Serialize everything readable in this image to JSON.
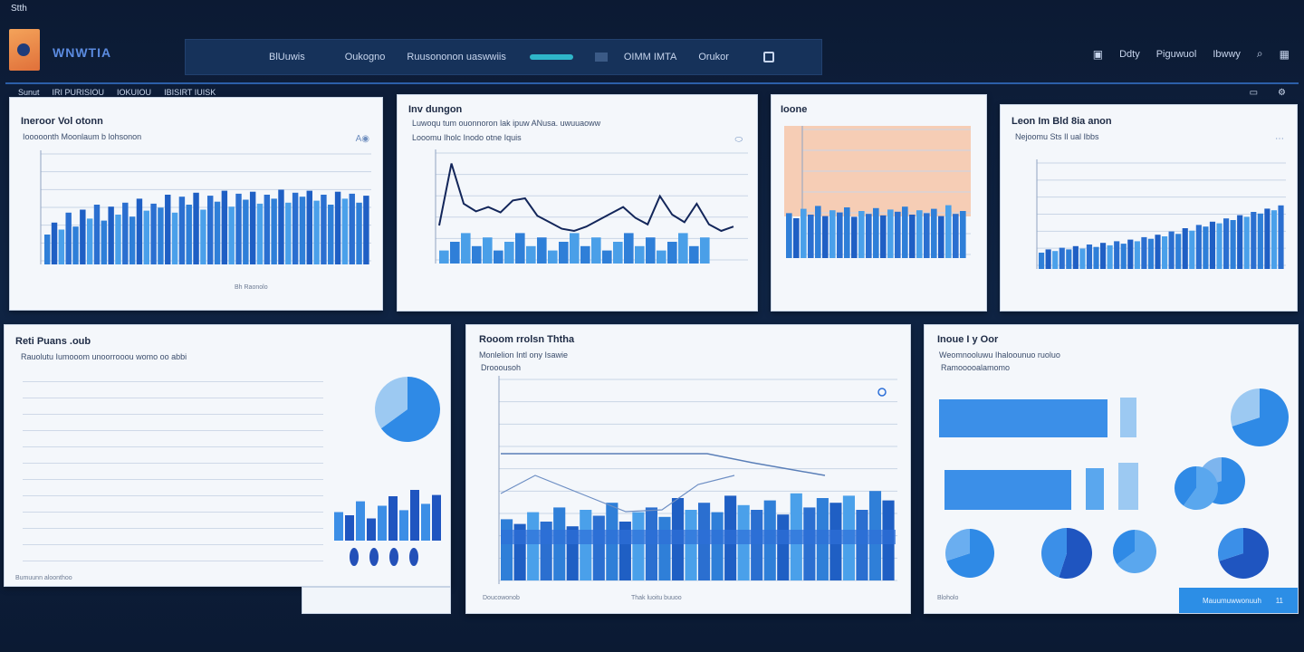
{
  "app": {
    "title": "Stth",
    "brand": "WNWTIA"
  },
  "topnav": {
    "items": [
      "BlUuwis",
      "Oukogno",
      "Ruusononon uaswwiis"
    ],
    "item2": "OIMM IMTA",
    "item3": "Orukor"
  },
  "rightnav": {
    "items": [
      "Ddty",
      "Piguwuol",
      "Ibwwy"
    ]
  },
  "toolbar": {
    "items": [
      "Sunut",
      "IRI PURISIOU",
      "IOKUIOU",
      "IBISIRT IUISK"
    ]
  },
  "panels": {
    "p1": {
      "title": "Ineroor Vol otonn",
      "subtitle": "Iooooonth Moonlaum b lohsonon",
      "footer": "Bh Raonolo"
    },
    "p2": {
      "title": "Inv dungon",
      "subtitle": "Luwoqu tum ouonnoron lak ipuw ANusa. uwuuaoww",
      "subtitle2": "Looomu Iholc Inodo otne Iquis"
    },
    "p3": {
      "title": "Ioone"
    },
    "p4": {
      "title": "Leon Im Bld 8ia anon",
      "subtitle": "Nejoomu Sts Il ual Ibbs"
    },
    "p5": {
      "title": "Reti Puans .oub",
      "subtitle": "Rauolutu Iumooom unoorrooou womo oo abbi",
      "footer": "Bumuunn aloonthoo"
    },
    "p6": {
      "title": "Rooom rrolsn Ththa",
      "subtitle": "Monlelion Intl ony Isawie",
      "sub2": "Drooousoh",
      "footer": "Thak luoitu buuoo",
      "footer_left": "Doucowonob"
    },
    "p7": {
      "title": "Inoue I y Oor",
      "subtitle": "Weomnooluwu Ihaloounuo ruoluo",
      "sub2": "Ramooooalamomo",
      "footer_left": "Bloholo"
    }
  },
  "footer_button": {
    "label": "Mauumuwwonuuh",
    "count": "11"
  },
  "chart_data": [
    {
      "type": "bar",
      "title": "Ineroor Vol otonn",
      "series": [
        {
          "values": [
            0.3,
            0.42,
            0.35,
            0.52,
            0.38,
            0.55,
            0.46,
            0.6,
            0.44,
            0.58,
            0.5,
            0.62,
            0.48,
            0.66,
            0.54,
            0.61,
            0.57,
            0.7,
            0.52,
            0.68,
            0.6,
            0.72,
            0.55,
            0.69,
            0.63,
            0.74,
            0.58,
            0.71,
            0.65,
            0.73,
            0.61,
            0.7,
            0.66,
            0.75,
            0.62,
            0.72,
            0.68,
            0.74,
            0.64,
            0.7,
            0.6,
            0.73,
            0.66,
            0.71,
            0.62,
            0.69
          ]
        }
      ]
    },
    {
      "type": "line",
      "title": "Inv dungon",
      "series": [
        {
          "values": [
            0.35,
            0.92,
            0.55,
            0.48,
            0.52,
            0.47,
            0.58,
            0.6,
            0.44,
            0.38,
            0.32,
            0.3,
            0.34,
            0.4,
            0.46,
            0.52,
            0.42,
            0.36,
            0.62,
            0.45,
            0.38,
            0.55,
            0.36,
            0.3,
            0.34
          ]
        }
      ]
    },
    {
      "type": "bar",
      "title": "Ioone",
      "series": [
        {
          "values": [
            0.62,
            0.55,
            0.68,
            0.6,
            0.72,
            0.58,
            0.66,
            0.63,
            0.7,
            0.57,
            0.65,
            0.61,
            0.69,
            0.59,
            0.67,
            0.64,
            0.71,
            0.6,
            0.66,
            0.62,
            0.68,
            0.58,
            0.73,
            0.61,
            0.65
          ]
        }
      ]
    },
    {
      "type": "bar",
      "title": "Leon Im Bld 8ia anon",
      "series": [
        {
          "values": [
            0.2,
            0.24,
            0.22,
            0.26,
            0.24,
            0.28,
            0.25,
            0.3,
            0.27,
            0.32,
            0.29,
            0.34,
            0.31,
            0.36,
            0.34,
            0.39,
            0.37,
            0.42,
            0.4,
            0.46,
            0.43,
            0.5,
            0.47,
            0.54,
            0.52,
            0.58,
            0.56,
            0.62,
            0.6,
            0.66,
            0.64,
            0.7,
            0.68,
            0.74,
            0.72,
            0.78
          ]
        }
      ]
    },
    {
      "type": "pie",
      "title": "Reti Puans .oub",
      "values": [
        65,
        35
      ]
    },
    {
      "type": "bar",
      "title": "Rooom rrolsn Ththa",
      "series": [
        {
          "values": [
            0.52,
            0.48,
            0.58,
            0.5,
            0.62,
            0.46,
            0.6,
            0.55,
            0.66,
            0.5,
            0.58,
            0.62,
            0.54,
            0.7,
            0.6,
            0.66,
            0.58,
            0.72,
            0.64,
            0.6,
            0.68,
            0.56,
            0.74,
            0.62,
            0.7,
            0.66,
            0.72,
            0.6,
            0.76,
            0.68
          ]
        }
      ]
    },
    {
      "type": "pie",
      "title": "Inoue I y Oor",
      "values": [
        70,
        30
      ]
    }
  ]
}
